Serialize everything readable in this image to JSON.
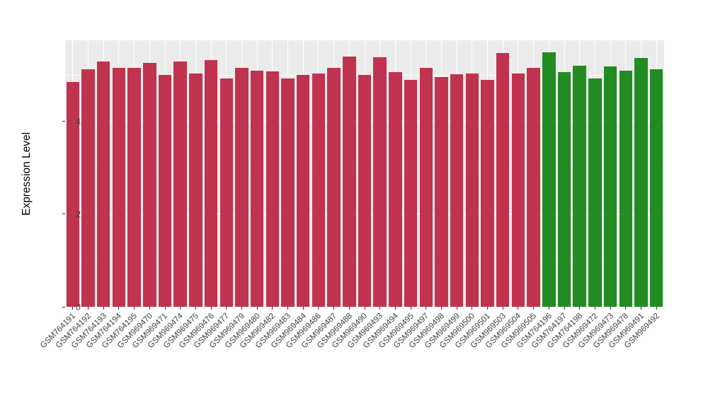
{
  "chart_data": {
    "type": "bar",
    "title": "",
    "xlabel": "",
    "ylabel": "Expression Level",
    "ylim": [
      0,
      5.75
    ],
    "yticks": [
      0,
      2,
      4
    ],
    "minor_yticks": [
      1,
      3,
      5
    ],
    "grid": true,
    "legend": "none",
    "panel_bg": "#EBEBEB",
    "grid_color": "#FFFFFF",
    "categories": [
      "GSM764191",
      "GSM764192",
      "GSM764193",
      "GSM764194",
      "GSM764195",
      "GSM969470",
      "GSM969471",
      "GSM969474",
      "GSM969475",
      "GSM969476",
      "GSM969477",
      "GSM969479",
      "GSM969480",
      "GSM969482",
      "GSM969483",
      "GSM969484",
      "GSM969486",
      "GSM969487",
      "GSM969488",
      "GSM969490",
      "GSM969493",
      "GSM969494",
      "GSM969495",
      "GSM969497",
      "GSM969498",
      "GSM969499",
      "GSM969500",
      "GSM969501",
      "GSM969503",
      "GSM969504",
      "GSM969505",
      "GSM764196",
      "GSM764197",
      "GSM764198",
      "GSM969472",
      "GSM969473",
      "GSM969478",
      "GSM969491",
      "GSM969492"
    ],
    "values": [
      4.85,
      5.12,
      5.3,
      5.15,
      5.15,
      5.26,
      5.0,
      5.3,
      5.04,
      5.32,
      4.92,
      5.16,
      5.1,
      5.08,
      4.93,
      5.0,
      5.04,
      5.15,
      5.4,
      5.0,
      5.38,
      5.07,
      4.9,
      5.16,
      4.95,
      5.02,
      5.04,
      4.9,
      5.48,
      5.03,
      5.15,
      5.49,
      5.07,
      5.2,
      4.92,
      5.18,
      5.1,
      5.37,
      5.13
    ],
    "groups": [
      "red",
      "red",
      "red",
      "red",
      "red",
      "red",
      "red",
      "red",
      "red",
      "red",
      "red",
      "red",
      "red",
      "red",
      "red",
      "red",
      "red",
      "red",
      "red",
      "red",
      "red",
      "red",
      "red",
      "red",
      "red",
      "red",
      "red",
      "red",
      "red",
      "red",
      "red",
      "green",
      "green",
      "green",
      "green",
      "green",
      "green",
      "green",
      "green"
    ],
    "group_colors": {
      "red": "#C0334E",
      "green": "#228B22"
    }
  }
}
